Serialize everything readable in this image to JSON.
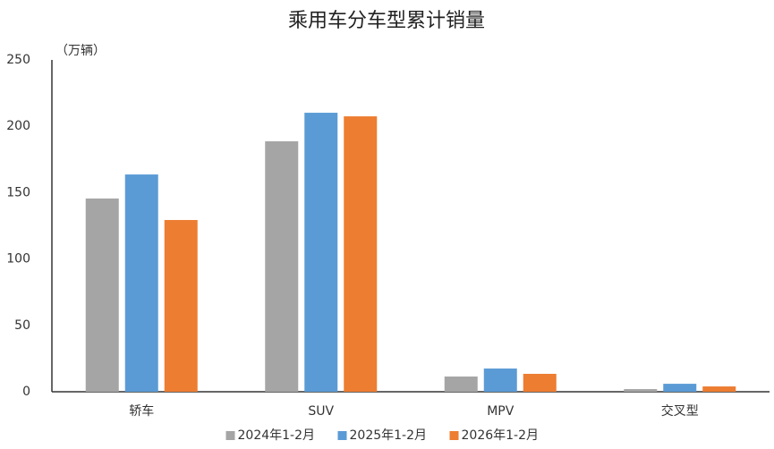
{
  "chart_data": {
    "type": "bar",
    "title": "乘用车分车型累计销量",
    "y_unit": "（万辆）",
    "categories": [
      "轿车",
      "SUV",
      "MPV",
      "交叉型"
    ],
    "series": [
      {
        "name": "2024年1-2月",
        "color": "#a5a5a5",
        "values": [
          145.6,
          188.7,
          11.5,
          2
        ]
      },
      {
        "name": "2025年1-2月",
        "color": "#5b9bd5",
        "values": [
          163.7,
          210.2,
          17.5,
          6
        ]
      },
      {
        "name": "2026年1-2月",
        "color": "#ed7d31",
        "values": [
          129.4,
          207.5,
          13.5,
          4
        ]
      }
    ],
    "ylim": [
      0,
      250
    ],
    "yticks": [
      0,
      50,
      100,
      150,
      200,
      250
    ],
    "grid": false,
    "legend": "bottom"
  }
}
